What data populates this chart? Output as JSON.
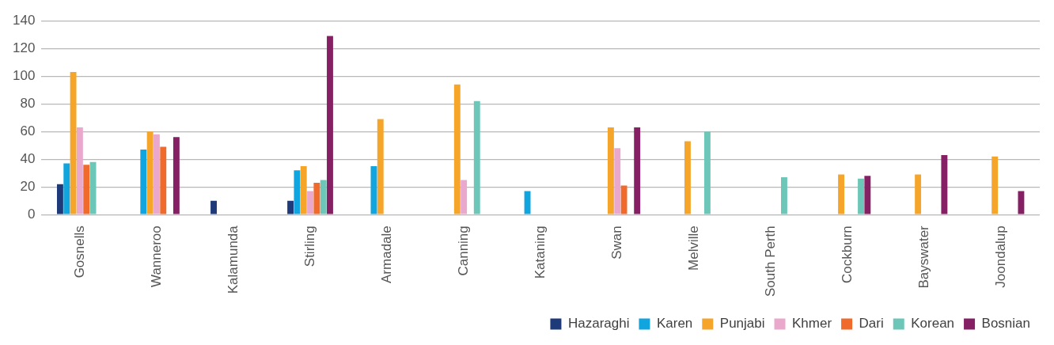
{
  "chart_data": {
    "type": "bar",
    "categories": [
      "Gosnells",
      "Wanneroo",
      "Kalamunda",
      "Stirling",
      "Armadale",
      "Canning",
      "Kataning",
      "Swan",
      "Melville",
      "South Perth",
      "Cockburn",
      "Bayswater",
      "Joondalup"
    ],
    "series": [
      {
        "name": "Hazaraghi",
        "color": "#1f3a78",
        "values": [
          22,
          null,
          10,
          10,
          null,
          null,
          null,
          null,
          null,
          null,
          null,
          null,
          null
        ]
      },
      {
        "name": "Karen",
        "color": "#10a5de",
        "values": [
          37,
          47,
          null,
          32,
          35,
          null,
          17,
          null,
          null,
          null,
          null,
          null,
          null
        ]
      },
      {
        "name": "Punjabi",
        "color": "#f5a52a",
        "values": [
          103,
          60,
          null,
          35,
          69,
          94,
          null,
          63,
          53,
          null,
          29,
          29,
          42
        ]
      },
      {
        "name": "Khmer",
        "color": "#eaa9cc",
        "values": [
          63,
          58,
          null,
          17,
          null,
          25,
          null,
          48,
          null,
          null,
          null,
          null,
          null
        ]
      },
      {
        "name": "Dari",
        "color": "#f06a2c",
        "values": [
          36,
          49,
          null,
          23,
          null,
          null,
          null,
          21,
          null,
          null,
          null,
          null,
          null
        ]
      },
      {
        "name": "Korean",
        "color": "#6cc7b8",
        "values": [
          38,
          null,
          null,
          25,
          null,
          82,
          null,
          null,
          60,
          27,
          26,
          null,
          null
        ]
      },
      {
        "name": "Bosnian",
        "color": "#852064",
        "values": [
          null,
          56,
          null,
          129,
          null,
          null,
          null,
          63,
          null,
          null,
          28,
          43,
          17
        ]
      }
    ],
    "ylim": [
      0,
      140
    ],
    "yticks": [
      0,
      20,
      40,
      60,
      80,
      100,
      120,
      140
    ],
    "grid": "y",
    "legend": "bottom right"
  }
}
